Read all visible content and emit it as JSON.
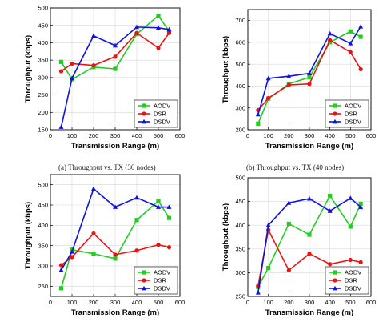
{
  "colors": {
    "AODV": "#22cc22",
    "DSR": "#ee1111",
    "DSDV": "#1111dd"
  },
  "chart_data": [
    {
      "type": "line",
      "caption": "(a) Throughput vs. TX (30 nodes)",
      "xlabel": "Transmission Range (m)",
      "ylabel": "Throughput (kbps)",
      "xlim": [
        0,
        600
      ],
      "ylim": [
        150,
        500
      ],
      "xticks": [
        0,
        100,
        200,
        300,
        400,
        500,
        600
      ],
      "yticks": [
        150,
        200,
        250,
        300,
        350,
        400,
        450,
        500
      ],
      "legend": "bottom-right",
      "series": [
        {
          "name": "AODV",
          "x": [
            50,
            100,
            200,
            300,
            400,
            500,
            550
          ],
          "y": [
            345,
            295,
            330,
            325,
            425,
            478,
            433
          ]
        },
        {
          "name": "DSR",
          "x": [
            50,
            100,
            200,
            300,
            400,
            500,
            550
          ],
          "y": [
            318,
            340,
            335,
            360,
            428,
            385,
            428
          ]
        },
        {
          "name": "DSDV",
          "x": [
            50,
            100,
            200,
            300,
            400,
            500,
            550
          ],
          "y": [
            158,
            298,
            420,
            392,
            445,
            443,
            438
          ]
        }
      ]
    },
    {
      "type": "line",
      "caption": "(b) Throughput vs. TX (40 nodes)",
      "xlabel": "Transmission Range (m)",
      "ylabel": "Throughput (kbps)",
      "xlim": [
        0,
        600
      ],
      "ylim": [
        200,
        750
      ],
      "xticks": [
        0,
        100,
        200,
        300,
        400,
        500,
        600
      ],
      "yticks": [
        200,
        300,
        400,
        500,
        600,
        700
      ],
      "legend": "bottom-right",
      "series": [
        {
          "name": "AODV",
          "x": [
            50,
            100,
            200,
            300,
            400,
            500,
            550
          ],
          "y": [
            228,
            342,
            410,
            440,
            600,
            650,
            625
          ]
        },
        {
          "name": "DSR",
          "x": [
            50,
            100,
            200,
            300,
            400,
            500,
            550
          ],
          "y": [
            290,
            345,
            405,
            410,
            610,
            555,
            477
          ]
        },
        {
          "name": "DSDV",
          "x": [
            50,
            100,
            200,
            300,
            400,
            500,
            550
          ],
          "y": [
            270,
            435,
            445,
            458,
            640,
            595,
            672
          ]
        }
      ]
    },
    {
      "type": "line",
      "caption": "",
      "xlabel": "Transmission Range (m)",
      "ylabel": "Throughput (kbps)",
      "xlim": [
        0,
        600
      ],
      "ylim": [
        225,
        525
      ],
      "xticks": [
        0,
        100,
        200,
        300,
        400,
        500,
        600
      ],
      "yticks": [
        250,
        300,
        350,
        400,
        450,
        500
      ],
      "legend": "bottom-right",
      "series": [
        {
          "name": "AODV",
          "x": [
            50,
            100,
            200,
            300,
            400,
            500,
            550
          ],
          "y": [
            245,
            340,
            330,
            318,
            413,
            460,
            418
          ]
        },
        {
          "name": "DSR",
          "x": [
            50,
            100,
            200,
            300,
            400,
            500,
            550
          ],
          "y": [
            302,
            322,
            380,
            328,
            338,
            352,
            346
          ]
        },
        {
          "name": "DSDV",
          "x": [
            50,
            100,
            200,
            300,
            400,
            500,
            550
          ],
          "y": [
            290,
            335,
            490,
            445,
            468,
            445,
            445
          ]
        }
      ]
    },
    {
      "type": "line",
      "caption": "",
      "xlabel": "Transmission Range (m)",
      "ylabel": "Throughput (kbps)",
      "xlim": [
        0,
        600
      ],
      "ylim": [
        250,
        500
      ],
      "xticks": [
        0,
        100,
        200,
        300,
        400,
        500,
        600
      ],
      "yticks": [
        250,
        300,
        350,
        400,
        450,
        500
      ],
      "legend": "bottom-right",
      "series": [
        {
          "name": "AODV",
          "x": [
            50,
            100,
            200,
            300,
            400,
            500,
            550
          ],
          "y": [
            270,
            310,
            403,
            380,
            462,
            397,
            445
          ]
        },
        {
          "name": "DSR",
          "x": [
            50,
            100,
            200,
            300,
            400,
            500,
            550
          ],
          "y": [
            272,
            390,
            305,
            340,
            318,
            327,
            322
          ]
        },
        {
          "name": "DSDV",
          "x": [
            50,
            100,
            200,
            300,
            400,
            500,
            550
          ],
          "y": [
            258,
            400,
            447,
            456,
            430,
            457,
            438
          ]
        }
      ]
    }
  ]
}
